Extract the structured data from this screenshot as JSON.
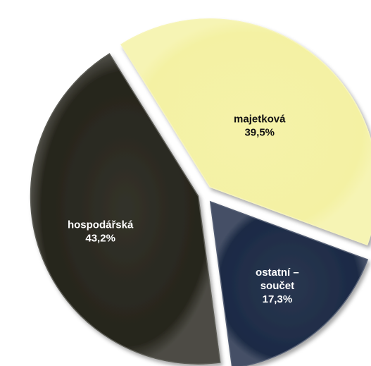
{
  "chart_data": {
    "type": "pie",
    "slices": [
      {
        "label_lines": [
          "majetková"
        ],
        "value": 39.5,
        "value_label": "39,5%",
        "color": "#f4f1a3"
      },
      {
        "label_lines": [
          "ostatní –",
          "součet"
        ],
        "value": 17.3,
        "value_label": "17,3%",
        "color": "#1c2a45"
      },
      {
        "label_lines": [
          "hospodářská"
        ],
        "value": 43.2,
        "value_label": "43,2%",
        "color": "#26251c"
      }
    ],
    "label_colors": [
      "#111111",
      "#ffffff",
      "#ffffff"
    ],
    "exploded": true,
    "legend": "none"
  }
}
